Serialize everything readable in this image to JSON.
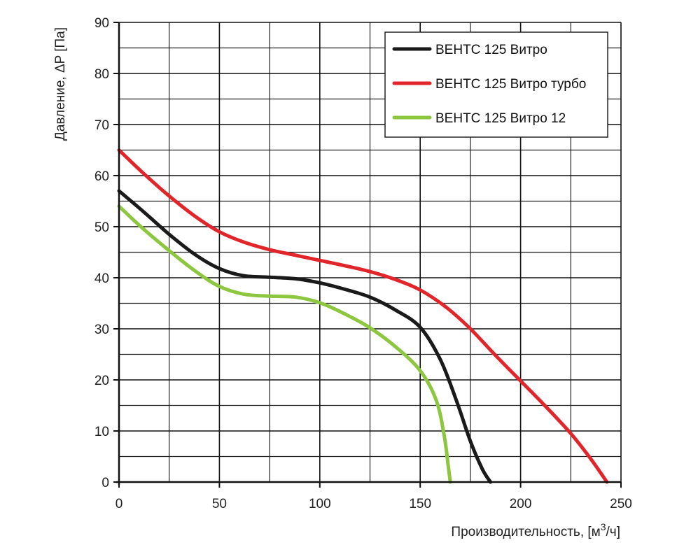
{
  "chart_data": {
    "type": "line",
    "title": "",
    "xlabel": "Производительность, [м",
    "xlabel_sup": "3",
    "xlabel_tail": "/ч]",
    "ylabel": "Давление, ΔP [Па]",
    "xlim": [
      0,
      250
    ],
    "ylim": [
      0,
      90
    ],
    "x_ticks": [
      0,
      50,
      100,
      150,
      200,
      250
    ],
    "y_ticks": [
      0,
      10,
      20,
      30,
      40,
      50,
      60,
      70,
      80,
      90
    ],
    "grid": true,
    "legend_position": "top-right",
    "series": [
      {
        "name": "ВЕНТС 125 Витро",
        "color": "#1a1a1a",
        "points": [
          [
            0,
            57
          ],
          [
            12,
            53
          ],
          [
            25,
            48.5
          ],
          [
            38,
            44.5
          ],
          [
            50,
            41.8
          ],
          [
            62,
            40.4
          ],
          [
            75,
            40.1
          ],
          [
            88,
            39.8
          ],
          [
            100,
            39
          ],
          [
            112,
            37.8
          ],
          [
            125,
            36.2
          ],
          [
            138,
            33.6
          ],
          [
            150,
            30.3
          ],
          [
            160,
            24
          ],
          [
            168,
            16
          ],
          [
            175,
            8
          ],
          [
            181,
            2.5
          ],
          [
            185,
            0
          ]
        ]
      },
      {
        "name": "ВЕНТС 125 Витро турбо",
        "color": "#e1262b",
        "points": [
          [
            0,
            65
          ],
          [
            12,
            60.5
          ],
          [
            25,
            56
          ],
          [
            38,
            52
          ],
          [
            50,
            49
          ],
          [
            62,
            47
          ],
          [
            75,
            45.5
          ],
          [
            88,
            44.4
          ],
          [
            100,
            43.4
          ],
          [
            112,
            42.4
          ],
          [
            125,
            41.2
          ],
          [
            138,
            39.6
          ],
          [
            150,
            37.6
          ],
          [
            163,
            34.2
          ],
          [
            175,
            30
          ],
          [
            188,
            24.6
          ],
          [
            200,
            19.8
          ],
          [
            212,
            15
          ],
          [
            225,
            9.5
          ],
          [
            235,
            4.5
          ],
          [
            243,
            0
          ]
        ]
      },
      {
        "name": "ВЕНТС 125 Витро 12",
        "color": "#8dc63f",
        "points": [
          [
            0,
            54
          ],
          [
            12,
            49.6
          ],
          [
            25,
            45.3
          ],
          [
            38,
            41.3
          ],
          [
            50,
            38.3
          ],
          [
            62,
            36.8
          ],
          [
            75,
            36.4
          ],
          [
            88,
            36.2
          ],
          [
            100,
            35.1
          ],
          [
            112,
            33
          ],
          [
            125,
            30.2
          ],
          [
            138,
            26.4
          ],
          [
            150,
            21.8
          ],
          [
            158,
            16
          ],
          [
            162,
            9
          ],
          [
            164,
            3
          ],
          [
            165,
            0
          ]
        ]
      }
    ]
  }
}
